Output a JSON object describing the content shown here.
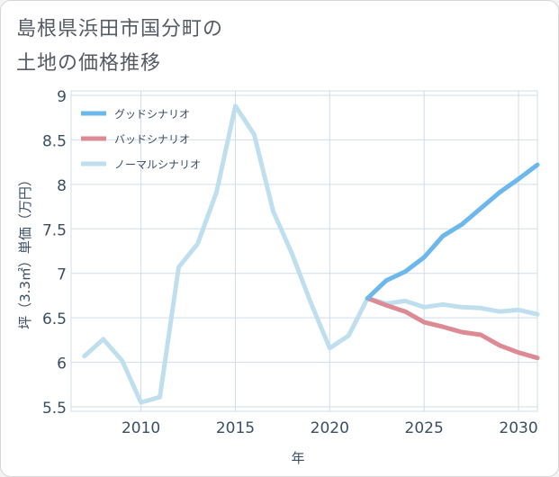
{
  "title_line1": "島根県浜田市国分町の",
  "title_line2": "土地の価格推移",
  "chart_data": {
    "type": "line",
    "title": "島根県浜田市国分町の土地の価格推移",
    "xlabel": "年",
    "ylabel": "坪（3.3㎡）単価（万円）",
    "xlim": [
      2006.3,
      2031
    ],
    "ylim": [
      5.45,
      9.05
    ],
    "xticks": [
      2010,
      2015,
      2020,
      2025,
      2030
    ],
    "yticks": [
      5.5,
      6,
      6.5,
      7,
      7.5,
      8,
      8.5,
      9
    ],
    "ytick_labels": [
      "5.5",
      "6",
      "6.5",
      "7",
      "7.5",
      "8",
      "8.5",
      "9"
    ],
    "legend_position": "top-left",
    "series": [
      {
        "name": "グッドシナリオ",
        "color": "#6cb8ec",
        "x": [
          2022,
          2023,
          2024,
          2025,
          2026,
          2027,
          2028,
          2029,
          2030,
          2031
        ],
        "y": [
          6.72,
          6.92,
          7.02,
          7.18,
          7.42,
          7.55,
          7.73,
          7.91,
          8.06,
          8.22
        ]
      },
      {
        "name": "バッドシナリオ",
        "color": "#de8a94",
        "x": [
          2022,
          2023,
          2024,
          2025,
          2026,
          2027,
          2028,
          2029,
          2030,
          2031
        ],
        "y": [
          6.72,
          6.64,
          6.57,
          6.45,
          6.4,
          6.34,
          6.31,
          6.19,
          6.11,
          6.05
        ]
      },
      {
        "name": "ノーマルシナリオ",
        "color": "#bfdfee",
        "x": [
          2007,
          2008,
          2009,
          2010,
          2011,
          2012,
          2013,
          2014,
          2015,
          2016,
          2017,
          2018,
          2019,
          2020,
          2021,
          2022,
          2023,
          2024,
          2025,
          2026,
          2027,
          2028,
          2029,
          2030,
          2031
        ],
        "y": [
          6.07,
          6.26,
          6.02,
          5.55,
          5.61,
          7.07,
          7.33,
          7.91,
          8.88,
          8.56,
          7.7,
          7.22,
          6.67,
          6.16,
          6.3,
          6.72,
          6.66,
          6.69,
          6.62,
          6.65,
          6.62,
          6.61,
          6.57,
          6.59,
          6.54
        ]
      }
    ]
  }
}
